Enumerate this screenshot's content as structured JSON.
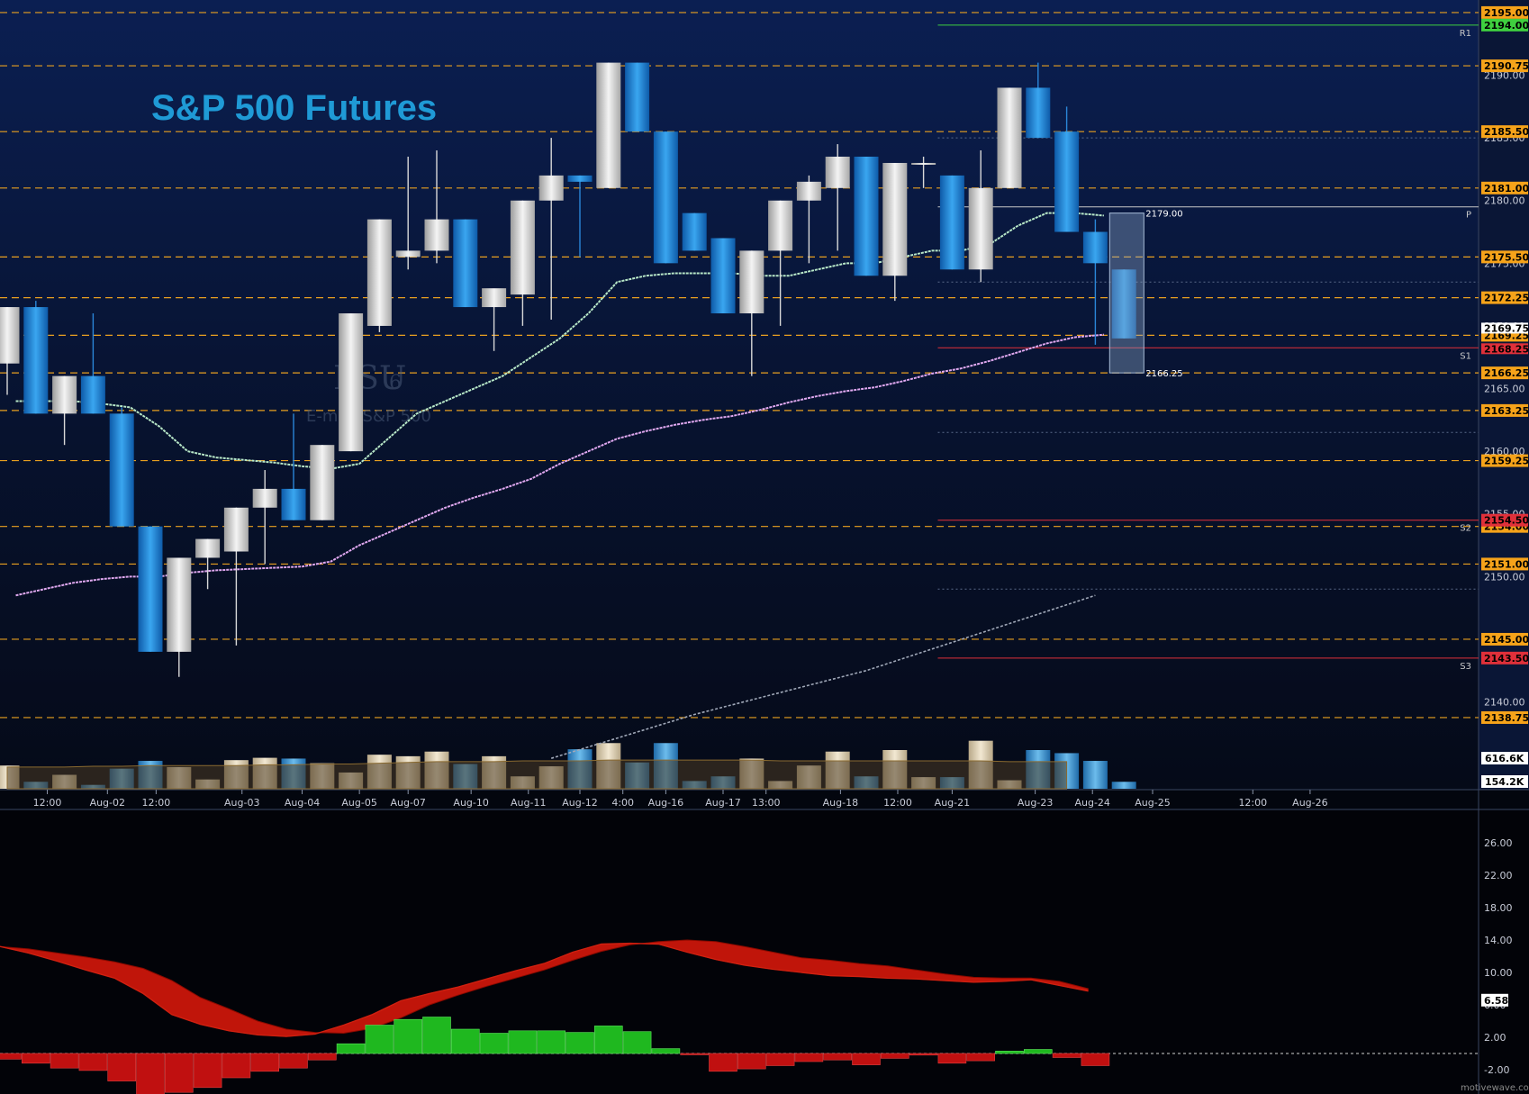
{
  "title": "S&P 500 Futures",
  "watermark": {
    "symbol": "ESU",
    "contract_digit": "6",
    "description": "E-mini S&P 500"
  },
  "footer_credit": "motivewave.com",
  "colors": {
    "up_candle": "#d6d6d6",
    "down_candle": "#1a7fd0",
    "level_line": "#e8a020",
    "level_box": "#f6a31a",
    "pivot_red": "#e0303a",
    "ma_fast": "#b8e8c8",
    "ma_slow": "#e0a8f0",
    "ma_long": "#a0a8b8",
    "macd_red": "#c0150a",
    "hist_green": "#1fb81f",
    "hist_red": "#c01010"
  },
  "chart_data": [
    {
      "type": "candlestick",
      "title": "S&P 500 Futures",
      "ylim": [
        2133,
        2196
      ],
      "price_ticks": [
        "2195.00",
        "2190.00",
        "2185.00",
        "2180.00",
        "2175.00",
        "2170.00",
        "2165.00",
        "2160.00",
        "2155.00",
        "2150.00",
        "2145.00",
        "2140.00"
      ],
      "x_labels": [
        "12:00",
        "Aug-02",
        "12:00",
        "Aug-03",
        "Aug-04",
        "Aug-05",
        "Aug-07",
        "Aug-10",
        "Aug-11",
        "Aug-12",
        "4:00",
        "Aug-16",
        "Aug-17",
        "13:00",
        "Aug-18",
        "12:00",
        "Aug-21",
        "Aug-23",
        "Aug-24",
        "Aug-25",
        "12:00",
        "Aug-26"
      ],
      "levels": [
        {
          "label": "2195.00",
          "value": 2195.0,
          "style": "dashed"
        },
        {
          "label": "2190.75",
          "value": 2190.75,
          "style": "dashed"
        },
        {
          "label": "2185.50",
          "value": 2185.5,
          "style": "dashed"
        },
        {
          "label": "2181.00",
          "value": 2181.0,
          "style": "dashed"
        },
        {
          "label": "2175.50",
          "value": 2175.5,
          "style": "dashed"
        },
        {
          "label": "2172.25",
          "value": 2172.25,
          "style": "dashed"
        },
        {
          "label": "2169.25",
          "value": 2169.25,
          "style": "dashed"
        },
        {
          "label": "2166.25",
          "value": 2166.25,
          "style": "dashed"
        },
        {
          "label": "2163.25",
          "value": 2163.25,
          "style": "dashed"
        },
        {
          "label": "2159.25",
          "value": 2159.25,
          "style": "dashed"
        },
        {
          "label": "2154.00",
          "value": 2154.0,
          "style": "dashed"
        },
        {
          "label": "2151.00",
          "value": 2151.0,
          "style": "dashed"
        },
        {
          "label": "2145.00",
          "value": 2145.0,
          "style": "dashed"
        },
        {
          "label": "2138.75",
          "value": 2138.75,
          "style": "dashed"
        }
      ],
      "pivots": [
        {
          "name": "R1",
          "value": 2194.0,
          "label": "2194.00",
          "color": "#3fcf3f"
        },
        {
          "name": "P",
          "value": 2179.5,
          "label": "",
          "color": "#c8c8c8"
        },
        {
          "name": "S1",
          "value": 2168.25,
          "label": "",
          "color": "#e0303a"
        },
        {
          "name": "S2",
          "value": 2154.5,
          "label": "2154.50",
          "color": "#e0303a"
        },
        {
          "name": "S3",
          "value": 2143.5,
          "label": "2143.50",
          "color": "#e0303a"
        }
      ],
      "current_price_labels": [
        "2169.75",
        "2168.25"
      ],
      "range_box": {
        "high": 2179.0,
        "low": 2166.25,
        "high_label": "2179.00",
        "low_label": "2166.25"
      },
      "candles": [
        {
          "o": 2167.0,
          "h": 2171.5,
          "l": 2164.5,
          "c": 2171.5
        },
        {
          "o": 2171.5,
          "h": 2172.0,
          "l": 2163.0,
          "c": 2163.0
        },
        {
          "o": 2163.0,
          "h": 2166.0,
          "l": 2160.5,
          "c": 2166.0
        },
        {
          "o": 2166.0,
          "h": 2171.0,
          "l": 2163.0,
          "c": 2163.0
        },
        {
          "o": 2163.0,
          "h": 2163.5,
          "l": 2154.0,
          "c": 2154.0
        },
        {
          "o": 2154.0,
          "h": 2154.0,
          "l": 2144.0,
          "c": 2144.0
        },
        {
          "o": 2144.0,
          "h": 2151.5,
          "l": 2142.0,
          "c": 2151.5
        },
        {
          "o": 2151.5,
          "h": 2153.0,
          "l": 2149.0,
          "c": 2153.0
        },
        {
          "o": 2152.0,
          "h": 2155.5,
          "l": 2144.5,
          "c": 2155.5
        },
        {
          "o": 2155.5,
          "h": 2158.5,
          "l": 2151.0,
          "c": 2157.0
        },
        {
          "o": 2157.0,
          "h": 2163.0,
          "l": 2154.5,
          "c": 2154.5
        },
        {
          "o": 2154.5,
          "h": 2160.5,
          "l": 2154.5,
          "c": 2160.5
        },
        {
          "o": 2160.0,
          "h": 2171.0,
          "l": 2160.0,
          "c": 2171.0
        },
        {
          "o": 2170.0,
          "h": 2178.5,
          "l": 2169.5,
          "c": 2178.5
        },
        {
          "o": 2175.5,
          "h": 2183.5,
          "l": 2174.5,
          "c": 2176.0
        },
        {
          "o": 2176.0,
          "h": 2184.0,
          "l": 2175.0,
          "c": 2178.5
        },
        {
          "o": 2178.5,
          "h": 2178.5,
          "l": 2171.5,
          "c": 2171.5
        },
        {
          "o": 2171.5,
          "h": 2172.5,
          "l": 2168.0,
          "c": 2173.0
        },
        {
          "o": 2172.5,
          "h": 2180.0,
          "l": 2170.0,
          "c": 2180.0
        },
        {
          "o": 2180.0,
          "h": 2185.0,
          "l": 2170.5,
          "c": 2182.0
        },
        {
          "o": 2182.0,
          "h": 2182.0,
          "l": 2175.5,
          "c": 2181.5
        },
        {
          "o": 2181.0,
          "h": 2191.0,
          "l": 2181.0,
          "c": 2191.0
        },
        {
          "o": 2191.0,
          "h": 2191.0,
          "l": 2185.5,
          "c": 2185.5
        },
        {
          "o": 2185.5,
          "h": 2185.5,
          "l": 2175.0,
          "c": 2175.0
        },
        {
          "o": 2179.0,
          "h": 2179.0,
          "l": 2176.0,
          "c": 2176.0
        },
        {
          "o": 2177.0,
          "h": 2177.0,
          "l": 2171.0,
          "c": 2171.0
        },
        {
          "o": 2171.0,
          "h": 2176.0,
          "l": 2166.0,
          "c": 2176.0
        },
        {
          "o": 2176.0,
          "h": 2180.0,
          "l": 2170.0,
          "c": 2180.0
        },
        {
          "o": 2180.0,
          "h": 2182.0,
          "l": 2175.0,
          "c": 2181.5
        },
        {
          "o": 2181.0,
          "h": 2184.5,
          "l": 2176.0,
          "c": 2183.5
        },
        {
          "o": 2183.5,
          "h": 2183.5,
          "l": 2174.0,
          "c": 2174.0
        },
        {
          "o": 2174.0,
          "h": 2183.0,
          "l": 2172.0,
          "c": 2183.0
        },
        {
          "o": 2183.0,
          "h": 2183.5,
          "l": 2181.0,
          "c": 2183.0
        },
        {
          "o": 2182.0,
          "h": 2182.0,
          "l": 2174.5,
          "c": 2174.5
        },
        {
          "o": 2174.5,
          "h": 2184.0,
          "l": 2173.5,
          "c": 2181.0
        },
        {
          "o": 2181.0,
          "h": 2189.0,
          "l": 2181.0,
          "c": 2189.0
        },
        {
          "o": 2189.0,
          "h": 2191.0,
          "l": 2185.0,
          "c": 2185.0
        },
        {
          "o": 2185.5,
          "h": 2187.5,
          "l": 2177.5,
          "c": 2177.5
        },
        {
          "o": 2177.5,
          "h": 2178.5,
          "l": 2168.5,
          "c": 2175.0
        },
        {
          "o": 2174.5,
          "h": 2174.5,
          "l": 2169.0,
          "c": 2169.0
        }
      ],
      "ma_fast": [
        2164,
        2164,
        2164,
        2163.8,
        2163.5,
        2162,
        2160,
        2159.5,
        2159.3,
        2159.1,
        2158.8,
        2158.6,
        2159,
        2161,
        2163,
        2164,
        2165,
        2166,
        2167.5,
        2169,
        2171,
        2173.5,
        2174,
        2174.2,
        2174.2,
        2174.2,
        2174,
        2174,
        2174.5,
        2175,
        2175,
        2175.5,
        2176,
        2176,
        2176.5,
        2178,
        2179,
        2179,
        2178.8
      ],
      "ma_slow": [
        2148.5,
        2149,
        2149.5,
        2149.8,
        2150,
        2150,
        2150.3,
        2150.5,
        2150.6,
        2150.7,
        2150.8,
        2151.2,
        2152.5,
        2153.5,
        2154.5,
        2155.5,
        2156.3,
        2157,
        2157.8,
        2159,
        2160,
        2161,
        2161.6,
        2162.1,
        2162.5,
        2162.8,
        2163.3,
        2163.9,
        2164.4,
        2164.8,
        2165.1,
        2165.6,
        2166.2,
        2166.6,
        2167.2,
        2167.9,
        2168.6,
        2169.1,
        2169.3
      ],
      "ma_long": [
        {
          "bar": 19,
          "value": 2135.5
        },
        {
          "bar": 24,
          "value": 2139.0
        },
        {
          "bar": 30,
          "value": 2142.5
        },
        {
          "bar": 36,
          "value": 2147.0
        },
        {
          "bar": 38,
          "value": 2148.5
        }
      ],
      "volume_labels": [
        "616.6K",
        "154.2K"
      ],
      "volume": [
        3,
        0.9,
        1.8,
        0.5,
        2.6,
        3.6,
        2.8,
        1.2,
        3.7,
        4,
        3.9,
        3.3,
        2.1,
        4.4,
        4.2,
        4.8,
        3.2,
        4.2,
        1.6,
        2.9,
        5.1,
        5.9,
        3.4,
        5.9,
        1.0,
        1.6,
        3.9,
        1.0,
        3.0,
        4.8,
        1.6,
        5.0,
        1.5,
        1.5,
        6.2,
        1.1,
        5.0,
        4.6,
        3.6,
        0.9
      ],
      "volume_ma": [
        2.8,
        2.8,
        2.8,
        2.9,
        2.9,
        3.0,
        3.0,
        3.0,
        3.0,
        3.1,
        3.1,
        3.2,
        3.2,
        3.3,
        3.4,
        3.5,
        3.5,
        3.5,
        3.6,
        3.6,
        3.6,
        3.7,
        3.7,
        3.7,
        3.7,
        3.7,
        3.7,
        3.6,
        3.6,
        3.6,
        3.6,
        3.6,
        3.6,
        3.6,
        3.6,
        3.5,
        3.5,
        3.5
      ]
    },
    {
      "type": "macd",
      "ylim": [
        -5,
        30
      ],
      "ticks": [
        "26.00",
        "22.00",
        "18.00",
        "14.00",
        "10.00",
        "6.00",
        "2.00",
        "-2.00"
      ],
      "current_label": "6.58",
      "macd_line": [
        13.2,
        12.4,
        11.4,
        10.3,
        9.3,
        7.4,
        4.8,
        3.6,
        2.8,
        2.3,
        2.1,
        2.4,
        3.5,
        4.8,
        6.5,
        7.4,
        8.2,
        9.2,
        10.2,
        11.1,
        12.5,
        13.5,
        13.6,
        13.5,
        12.5,
        11.6,
        10.9,
        10.4,
        10.0,
        9.6,
        9.5,
        9.3,
        9.2,
        9.0,
        8.8,
        8.9,
        9.1,
        8.4,
        7.7
      ],
      "signal_line": [
        13.2,
        12.9,
        12.4,
        11.9,
        11.3,
        10.5,
        9.0,
        6.9,
        5.5,
        4.0,
        3.0,
        2.6,
        2.5,
        3.1,
        4.4,
        6.0,
        7.2,
        8.3,
        9.3,
        10.3,
        11.5,
        12.6,
        13.4,
        13.8,
        14.0,
        13.8,
        13.2,
        12.5,
        11.8,
        11.5,
        11.1,
        10.8,
        10.3,
        9.8,
        9.4,
        9.3,
        9.3,
        8.9,
        8.0
      ],
      "histogram": [
        -0.7,
        -1.2,
        -1.8,
        -2.1,
        -3.4,
        -5.4,
        -4.8,
        -4.2,
        -3.0,
        -2.2,
        -1.8,
        -0.8,
        1.2,
        3.5,
        4.2,
        4.5,
        3.0,
        2.5,
        2.8,
        2.8,
        2.6,
        3.4,
        2.7,
        0.6,
        -0.1,
        -2.2,
        -1.9,
        -1.5,
        -1.0,
        -0.8,
        -1.4,
        -0.6,
        -0.2,
        -1.2,
        -0.9,
        0.3,
        0.5,
        -0.5,
        -1.5
      ]
    }
  ]
}
